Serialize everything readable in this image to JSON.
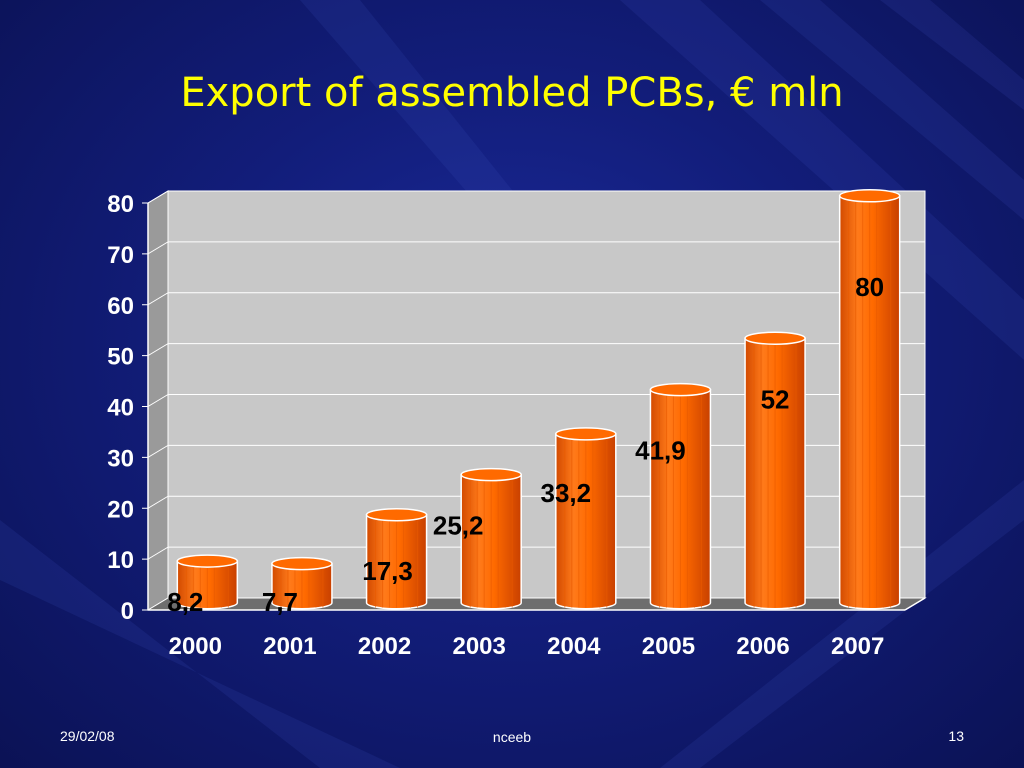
{
  "slide": {
    "title": "Export of assembled PCBs, € mln",
    "footer_date": "29/02/08",
    "footer_center": "nceeb",
    "footer_page": "13"
  },
  "colors": {
    "background": "#121d7a",
    "title": "#ffff00",
    "bar": "#ff6a00",
    "plot_area": "#c8c8c8"
  },
  "chart_data": {
    "type": "bar",
    "title": "Export of assembled PCBs, € mln",
    "xlabel": "",
    "ylabel": "",
    "categories": [
      "2000",
      "2001",
      "2002",
      "2003",
      "2004",
      "2005",
      "2006",
      "2007"
    ],
    "values": [
      8.2,
      7.7,
      17.3,
      25.2,
      33.2,
      41.9,
      52,
      80
    ],
    "data_labels": [
      "8,2",
      "7,7",
      "17,3",
      "25,2",
      "33,2",
      "41,9",
      "52",
      "80"
    ],
    "ylim": [
      0,
      80
    ],
    "yticks": [
      "0",
      "10",
      "20",
      "30",
      "40",
      "50",
      "60",
      "70",
      "80"
    ],
    "grid": true,
    "legend": "none",
    "style": "3d-cylinder"
  }
}
